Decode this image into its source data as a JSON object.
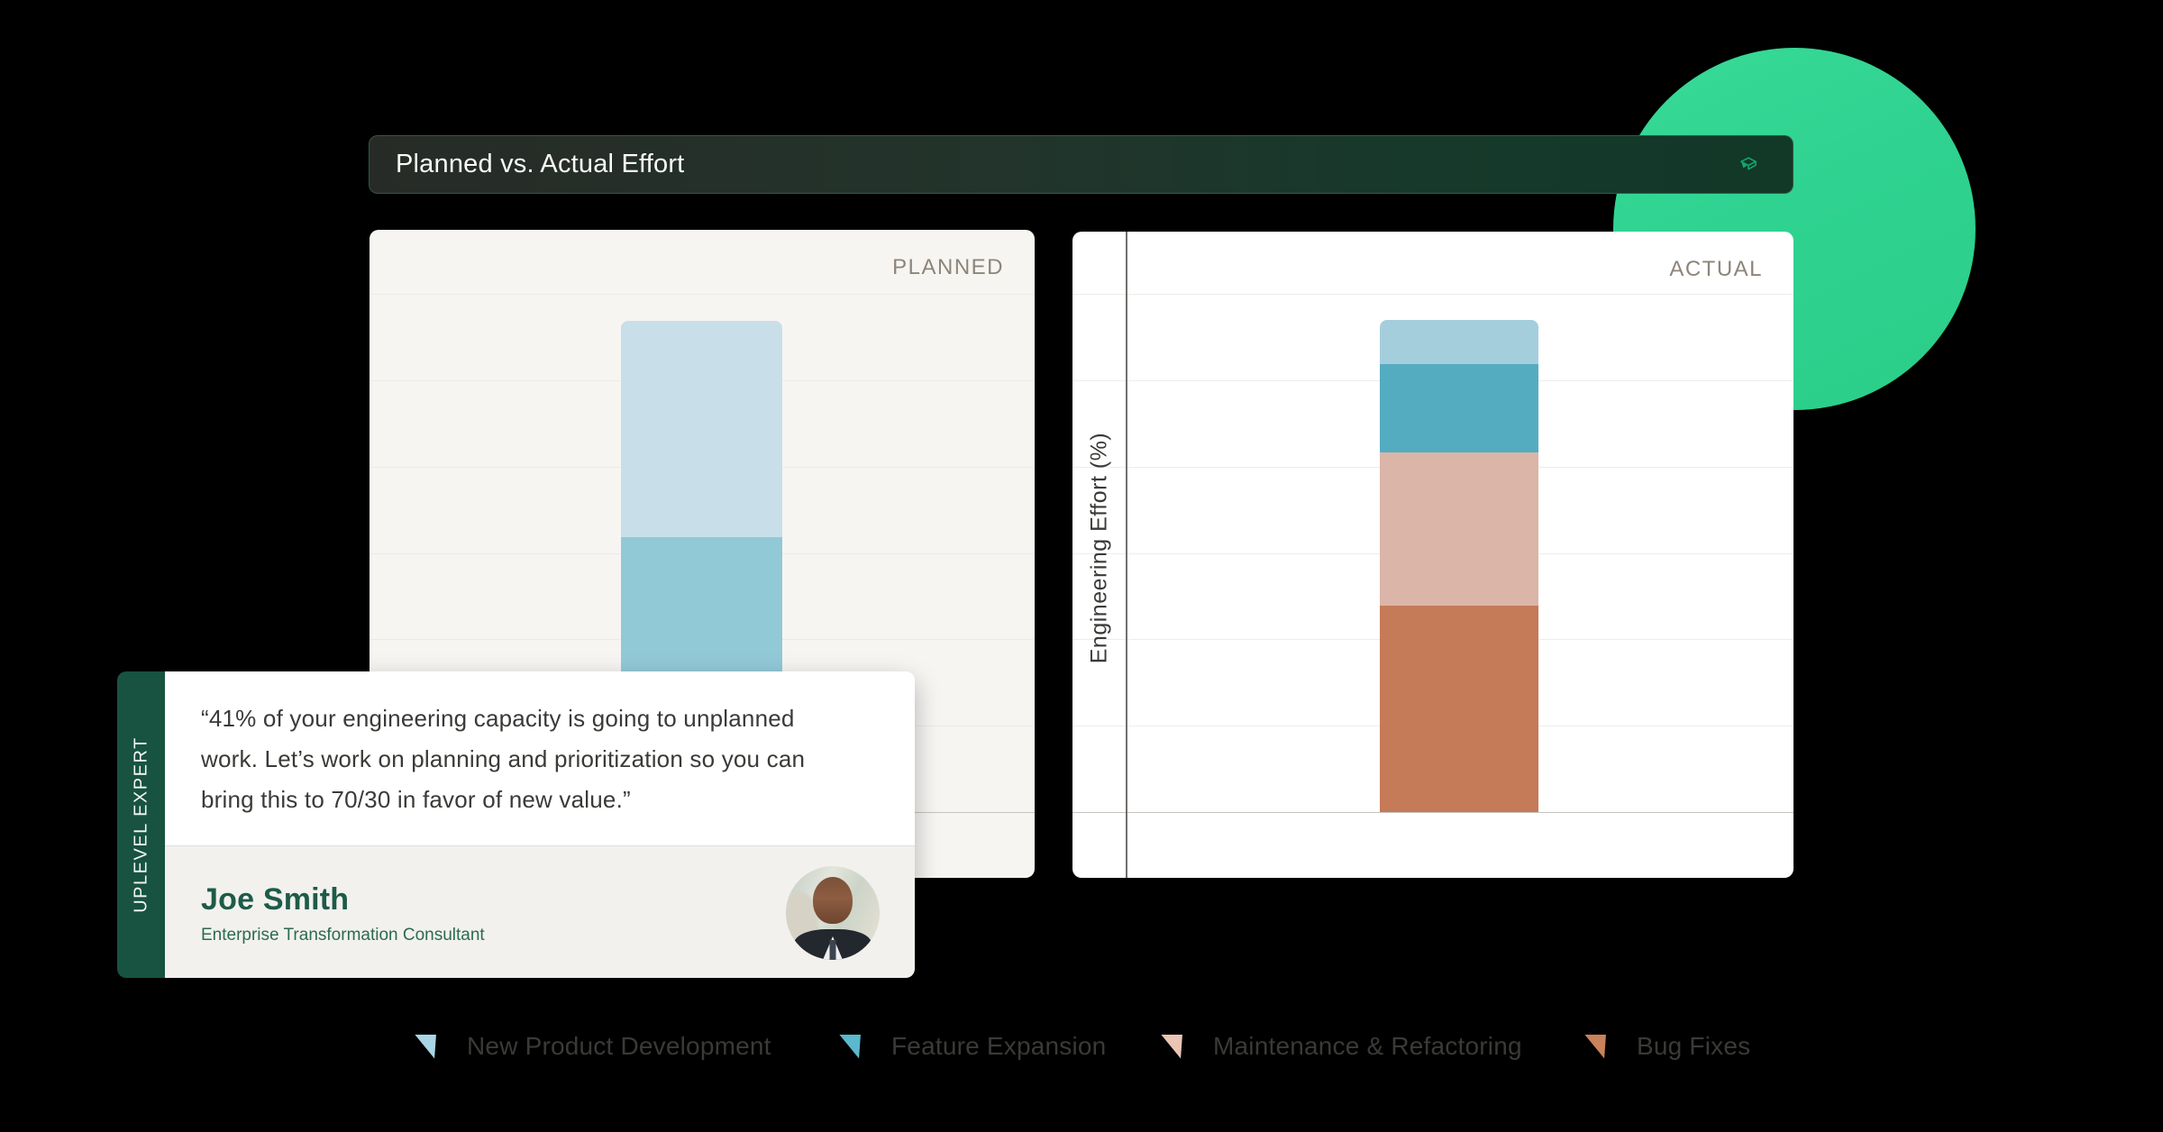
{
  "header": {
    "title": "Planned vs. Actual Effort",
    "icon": "cube-logo-icon"
  },
  "brand_colors": {
    "accent_green_circle": "#2fd290",
    "header_gradient_start": "#272b27",
    "header_gradient_end": "#123828",
    "spine_green": "#175340",
    "name_green": "#1d5b49",
    "icon_green": "#13a871"
  },
  "chart_data": [
    {
      "id": "planned",
      "type": "bar",
      "title": "PLANNED",
      "categories": [
        "Engineering Effort"
      ],
      "series_keys": [
        "new-product-development",
        "feature-expansion"
      ],
      "series": [
        {
          "name": "New Product Development",
          "value": 44
        },
        {
          "name": "Feature Expansion",
          "value": 56
        }
      ],
      "values": [
        44,
        56
      ],
      "colors": [
        "#c8dfe9",
        "#92c9d7"
      ],
      "ylabel": "",
      "ylim": [
        0,
        100
      ],
      "grid": "horizontal"
    },
    {
      "id": "actual",
      "type": "bar",
      "title": "ACTUAL",
      "categories": [
        "Engineering Effort"
      ],
      "series_keys": [
        "new-product-development",
        "feature-expansion",
        "maintenance-refactoring",
        "bug-fixes"
      ],
      "series": [
        {
          "name": "New Product Development",
          "value": 9
        },
        {
          "name": "Feature Expansion",
          "value": 18
        },
        {
          "name": "Maintenance & Refactoring",
          "value": 31
        },
        {
          "name": "Bug Fixes",
          "value": 42
        }
      ],
      "values": [
        9,
        18,
        31,
        42
      ],
      "colors": [
        "#a5cedd",
        "#54acc0",
        "#dbb5a7",
        "#c57a58"
      ],
      "ylabel": "Engineering Effort (%)",
      "ylim": [
        0,
        100
      ],
      "grid": "horizontal"
    }
  ],
  "expert_card": {
    "tag": "UPLEVEL EXPERT",
    "quote_lines": [
      "“41% of your engineering capacity is going to unplanned",
      "work. Let’s work on planning and prioritization so you can",
      "bring this to 70/30 in favor of new value.”"
    ],
    "name": "Joe Smith",
    "role": "Enterprise Transformation Consultant"
  },
  "legend": {
    "items": [
      {
        "label": "New Product Development",
        "color": "#a9d6e5"
      },
      {
        "label": "Feature Expansion",
        "color": "#5bb8cd"
      },
      {
        "label": "Maintenance & Refactoring",
        "color": "#eac5b5"
      },
      {
        "label": "Bug Fixes",
        "color": "#c9825a"
      }
    ]
  }
}
